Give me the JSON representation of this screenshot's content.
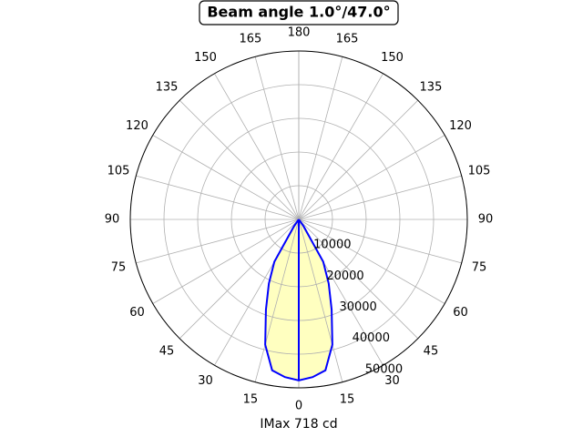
{
  "chart_data": {
    "type": "polar",
    "title": "Beam angle 1.0°/47.0°",
    "x_label": "IMax 718 cd",
    "ylim": [
      0,
      50000
    ],
    "yticks": [
      10000,
      20000,
      30000,
      40000,
      50000
    ],
    "xticks": [
      0,
      15,
      30,
      45,
      60,
      75,
      90,
      105,
      120,
      135,
      150,
      165,
      180
    ],
    "grid": true,
    "fill_color": "#ffffc0",
    "series": [
      {
        "color": "#0000ff",
        "x": [
          -45,
          -40,
          -35,
          -30,
          -25,
          -20,
          -15,
          -10,
          -5,
          0,
          5,
          10,
          15,
          20,
          25,
          30,
          35,
          40,
          45
        ],
        "values": [
          0,
          0,
          2500,
          14500,
          21000,
          28500,
          38500,
          45500,
          47000,
          47800,
          47000,
          45500,
          38500,
          28500,
          21000,
          14500,
          2500,
          0,
          0
        ]
      },
      {
        "color": "#0000ff",
        "x": [
          0,
          0
        ],
        "values": [
          0,
          47800
        ]
      }
    ]
  }
}
